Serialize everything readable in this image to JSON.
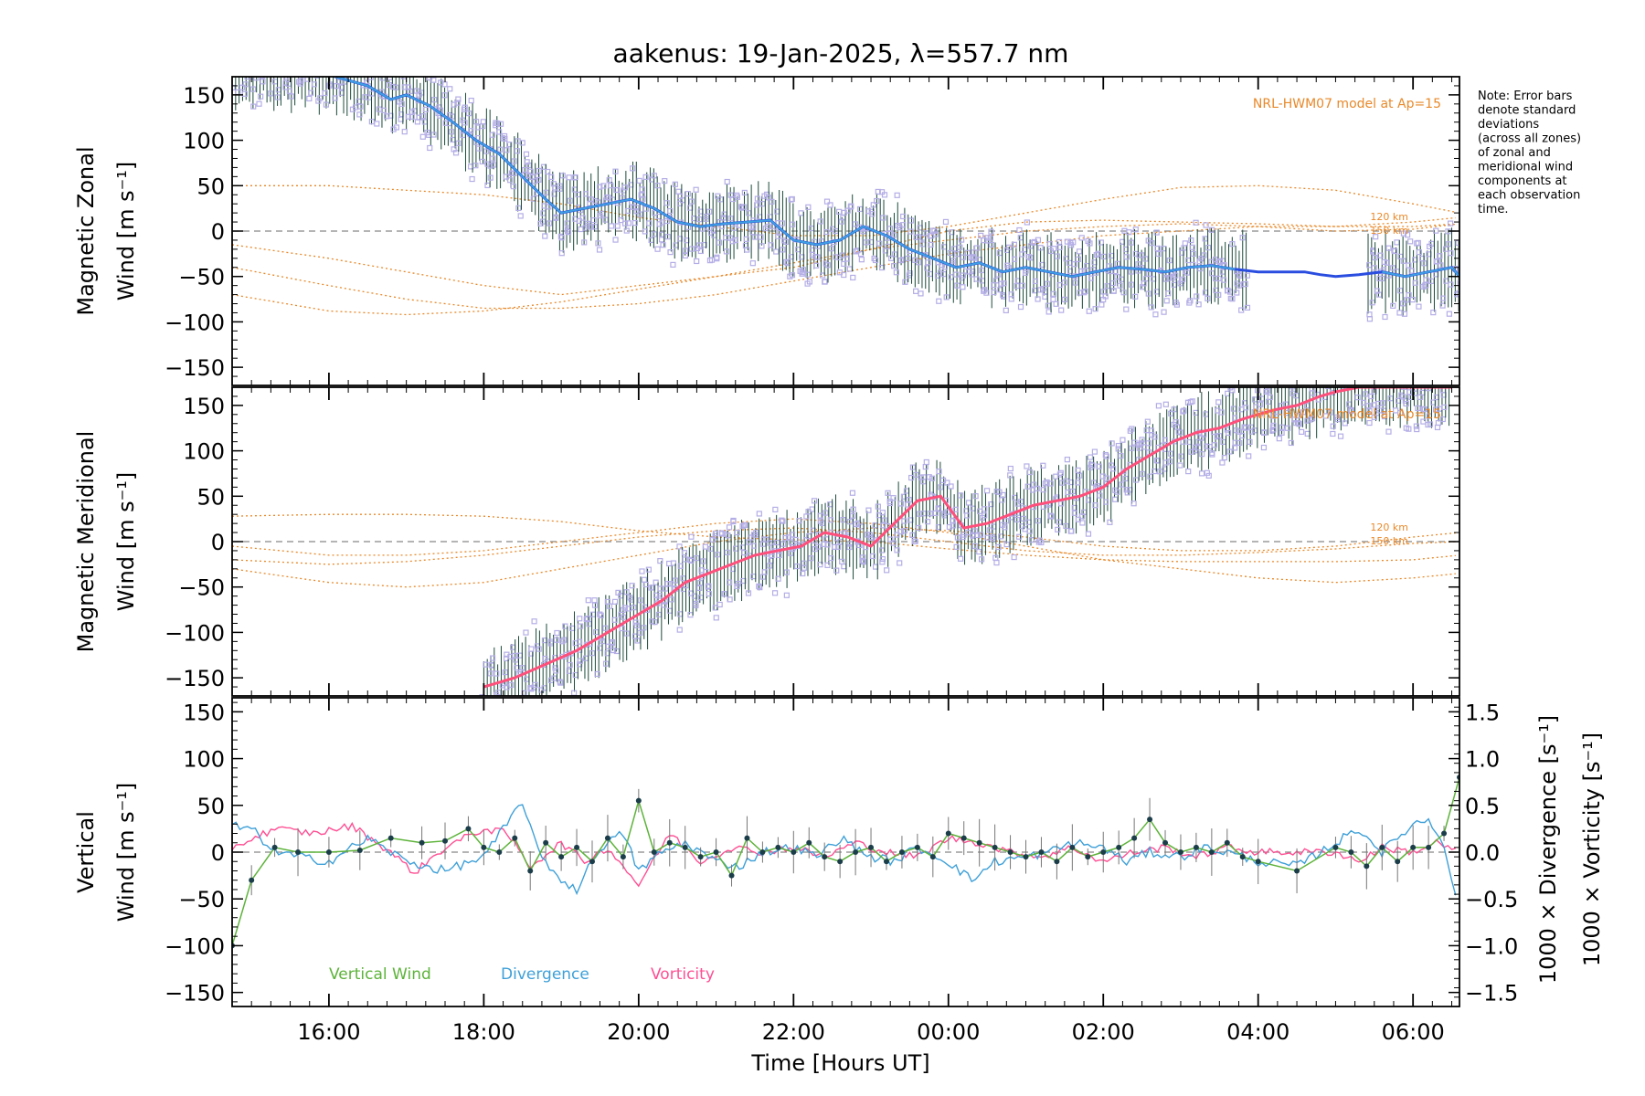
{
  "title": "aakenus: 19-Jan-2025, λ=557.7 nm",
  "xaxis": {
    "label": "Time [Hours UT]",
    "range": [
      14.75,
      30.6
    ],
    "ticks": [
      16,
      18,
      20,
      22,
      24,
      26,
      28,
      30
    ],
    "tick_labels": [
      "16:00",
      "18:00",
      "20:00",
      "22:00",
      "00:00",
      "02:00",
      "04:00",
      "06:00"
    ]
  },
  "note": [
    "Note: Error bars",
    "denote standard",
    "deviations",
    "(across all zones)",
    "of zonal and",
    "meridional wind",
    "components at",
    "each observation",
    "time."
  ],
  "colors": {
    "zonal": "#2a4de0",
    "zonal_light": "#3fa0e0",
    "meridional": "#ff4f7b",
    "model": "#e8892a",
    "scatter": "#b4aee6",
    "vertical": "#5db33a",
    "divergence": "#3ea0d8",
    "vorticity": "#ff4f93"
  },
  "chart_data": [
    {
      "type": "line",
      "panel": "zonal",
      "ylabel_line1": "Magnetic Zonal",
      "ylabel_line2": "Wind [m s⁻¹]",
      "ylim": [
        -170,
        170
      ],
      "yticks": [
        -150,
        -100,
        -50,
        0,
        50,
        100,
        150
      ],
      "ytick_labels": [
        "−150",
        "−100",
        "−50",
        "0",
        "50",
        "100",
        "150"
      ],
      "model_label": "NRL-HWM07 model at Ap=15",
      "km_labels": [
        "120 km",
        "150 km"
      ],
      "series": [
        {
          "name": "zonal wind",
          "x": [
            14.75,
            15.5,
            16.0,
            16.5,
            16.8,
            17.0,
            17.3,
            17.6,
            17.9,
            18.2,
            18.5,
            18.8,
            19.0,
            19.3,
            19.6,
            19.9,
            20.2,
            20.5,
            20.8,
            21.1,
            21.4,
            21.7,
            22.0,
            22.3,
            22.6,
            22.9,
            23.2,
            23.5,
            23.8,
            24.1,
            24.4,
            24.7,
            25.0,
            25.3,
            25.6,
            25.9,
            26.2,
            26.5,
            26.8,
            27.1,
            27.4,
            27.7,
            28.0,
            28.3,
            28.6,
            28.8,
            29.0,
            29.3,
            29.6,
            29.9,
            30.2,
            30.5,
            30.6
          ],
          "y": [
            175,
            175,
            172,
            160,
            145,
            150,
            138,
            120,
            100,
            85,
            60,
            35,
            20,
            25,
            30,
            35,
            25,
            10,
            5,
            8,
            10,
            12,
            -10,
            -15,
            -10,
            5,
            -5,
            -20,
            -30,
            -40,
            -35,
            -45,
            -40,
            -45,
            -50,
            -45,
            -40,
            -42,
            -45,
            -40,
            -38,
            -42,
            -45,
            -45,
            -45,
            -48,
            -50,
            -48,
            -45,
            -50,
            -45,
            -40,
            -50
          ]
        },
        {
          "name": "HWM07 model 1",
          "x": [
            14.75,
            16,
            17,
            18,
            19,
            20,
            21,
            22,
            23,
            24,
            25,
            26,
            27,
            28,
            29,
            30,
            30.6
          ],
          "y": [
            -15,
            -30,
            -45,
            -60,
            -70,
            -60,
            -50,
            -40,
            -20,
            0,
            10,
            12,
            10,
            8,
            5,
            10,
            15
          ]
        },
        {
          "name": "HWM07 model 2",
          "x": [
            14.75,
            16,
            17,
            18,
            19,
            20,
            21,
            22,
            23,
            24,
            25,
            26,
            27,
            28,
            29,
            30,
            30.6
          ],
          "y": [
            -70,
            -88,
            -92,
            -88,
            -78,
            -64,
            -50,
            -35,
            -20,
            -10,
            0,
            5,
            8,
            5,
            0,
            2,
            8
          ]
        },
        {
          "name": "HWM07 model 3",
          "x": [
            14.75,
            16,
            17,
            18,
            19,
            20,
            21,
            22,
            23,
            24,
            25,
            26,
            27,
            28,
            29,
            30,
            30.6
          ],
          "y": [
            50,
            50,
            45,
            40,
            30,
            15,
            5,
            -5,
            -5,
            5,
            20,
            35,
            48,
            50,
            45,
            30,
            20
          ]
        },
        {
          "name": "HWM07 model 4",
          "x": [
            14.75,
            16,
            17,
            18,
            19,
            20,
            21,
            22,
            23,
            24,
            25,
            26,
            27,
            28,
            29,
            30,
            30.6
          ],
          "y": [
            -40,
            -60,
            -75,
            -85,
            -85,
            -80,
            -70,
            -55,
            -40,
            -25,
            -15,
            -5,
            0,
            5,
            5,
            5,
            8
          ]
        }
      ]
    },
    {
      "type": "line",
      "panel": "meridional",
      "ylabel_line1": "Magnetic Meridional",
      "ylabel_line2": "Wind [m s⁻¹]",
      "ylim": [
        -170,
        170
      ],
      "yticks": [
        -150,
        -100,
        -50,
        0,
        50,
        100,
        150
      ],
      "ytick_labels": [
        "−150",
        "−100",
        "−50",
        "0",
        "50",
        "100",
        "150"
      ],
      "model_label": "NRL-HWM07 model at Ap=15",
      "km_labels": [
        "120 km",
        "150 km"
      ],
      "series": [
        {
          "name": "meridional wind",
          "x": [
            18.0,
            18.4,
            18.8,
            19.2,
            19.6,
            20.0,
            20.3,
            20.6,
            20.9,
            21.2,
            21.5,
            21.8,
            22.1,
            22.4,
            22.7,
            23.0,
            23.3,
            23.6,
            23.9,
            24.2,
            24.5,
            24.8,
            25.1,
            25.4,
            25.7,
            26.0,
            26.3,
            26.6,
            26.9,
            27.2,
            27.5,
            27.8,
            28.0,
            28.2,
            28.5,
            28.8,
            29.0,
            29.3,
            29.6,
            29.9,
            30.2,
            30.5
          ],
          "y": [
            -160,
            -150,
            -135,
            -120,
            -100,
            -80,
            -65,
            -45,
            -35,
            -25,
            -15,
            -10,
            -5,
            10,
            5,
            -5,
            20,
            45,
            50,
            15,
            20,
            30,
            40,
            45,
            50,
            60,
            80,
            95,
            110,
            120,
            125,
            135,
            140,
            145,
            150,
            160,
            165,
            170,
            170,
            170,
            170,
            170
          ]
        },
        {
          "name": "HWM07 model 1",
          "x": [
            14.75,
            16,
            17,
            18,
            19,
            20,
            21,
            22,
            23,
            24,
            25,
            26,
            27,
            28,
            29,
            30,
            30.6
          ],
          "y": [
            -30,
            -45,
            -50,
            -45,
            -30,
            -15,
            0,
            10,
            15,
            12,
            5,
            -5,
            -10,
            -10,
            -5,
            5,
            10
          ]
        },
        {
          "name": "HWM07 model 2",
          "x": [
            14.75,
            16,
            17,
            18,
            19,
            20,
            21,
            22,
            23,
            24,
            25,
            26,
            27,
            28,
            29,
            30,
            30.6
          ],
          "y": [
            28,
            30,
            30,
            28,
            22,
            12,
            5,
            2,
            0,
            -8,
            -15,
            -20,
            -22,
            -22,
            -22,
            -20,
            -15
          ]
        },
        {
          "name": "HWM07 model 3",
          "x": [
            14.75,
            16,
            17,
            18,
            19,
            20,
            21,
            22,
            23,
            24,
            25,
            26,
            27,
            28,
            29,
            30,
            30.6
          ],
          "y": [
            -5,
            -15,
            -15,
            -10,
            0,
            10,
            20,
            25,
            20,
            10,
            -5,
            -20,
            -30,
            -40,
            -45,
            -40,
            -35
          ]
        },
        {
          "name": "HWM07 model 4",
          "x": [
            14.75,
            16,
            17,
            18,
            19,
            20,
            21,
            22,
            23,
            24,
            25,
            26,
            27,
            28,
            29,
            30,
            30.6
          ],
          "y": [
            -20,
            -25,
            -22,
            -15,
            -5,
            5,
            12,
            15,
            10,
            0,
            -10,
            -15,
            -15,
            -12,
            -8,
            -2,
            0
          ]
        }
      ]
    },
    {
      "type": "line",
      "panel": "vertical",
      "ylabel_line1": "Vertical",
      "ylabel_line2": "Wind [m s⁻¹]",
      "ylim": [
        -165,
        165
      ],
      "yticks": [
        -150,
        -100,
        -50,
        0,
        50,
        100,
        150
      ],
      "ytick_labels": [
        "−150",
        "−100",
        "−50",
        "0",
        "50",
        "100",
        "150"
      ],
      "y2lim": [
        -1.65,
        1.65
      ],
      "y2ticks": [
        -1.5,
        -1.0,
        -0.5,
        0.0,
        0.5,
        1.0,
        1.5
      ],
      "y2tick_labels": [
        "−1.5",
        "−1.0",
        "−0.5",
        "0.0",
        "0.5",
        "1.0",
        "1.5"
      ],
      "y2label_divergence": "1000 × Divergence [s⁻¹]",
      "y2label_vorticity": "1000 × Vorticity [s⁻¹]",
      "legend": [
        "Vertical Wind",
        "Divergence",
        "Vorticity"
      ],
      "series": [
        {
          "name": "Vertical Wind",
          "x": [
            14.75,
            15.0,
            15.3,
            15.6,
            16.0,
            16.4,
            16.8,
            17.2,
            17.5,
            17.8,
            18.0,
            18.2,
            18.4,
            18.6,
            18.8,
            19.0,
            19.2,
            19.4,
            19.6,
            19.8,
            20.0,
            20.2,
            20.4,
            20.6,
            20.8,
            21.0,
            21.2,
            21.4,
            21.6,
            21.8,
            22.0,
            22.2,
            22.4,
            22.6,
            22.8,
            23.0,
            23.2,
            23.4,
            23.6,
            23.8,
            24.0,
            24.2,
            24.4,
            24.6,
            24.8,
            25.0,
            25.2,
            25.4,
            25.6,
            25.8,
            26.0,
            26.2,
            26.4,
            26.6,
            26.8,
            27.0,
            27.2,
            27.4,
            27.6,
            27.8,
            28.0,
            28.5,
            29.0,
            29.2,
            29.4,
            29.6,
            29.8,
            30.0,
            30.2,
            30.4,
            30.6
          ],
          "y": [
            -100,
            -30,
            5,
            0,
            0,
            2,
            15,
            10,
            12,
            25,
            5,
            0,
            15,
            -20,
            10,
            -5,
            5,
            -10,
            15,
            -5,
            55,
            0,
            10,
            5,
            -5,
            0,
            -25,
            15,
            0,
            5,
            0,
            10,
            -5,
            -10,
            0,
            5,
            -10,
            0,
            5,
            -5,
            20,
            15,
            10,
            5,
            0,
            -5,
            0,
            -10,
            5,
            -5,
            0,
            5,
            15,
            35,
            10,
            0,
            5,
            0,
            10,
            -5,
            -10,
            -20,
            5,
            0,
            -15,
            5,
            -10,
            5,
            5,
            20,
            80
          ]
        },
        {
          "name": "Divergence",
          "x": [
            14.75,
            15.0,
            15.3,
            15.6,
            16.0,
            16.5,
            17.0,
            17.5,
            18.0,
            18.3,
            18.5,
            18.7,
            19.0,
            19.2,
            19.5,
            19.8,
            20.0,
            20.3,
            20.6,
            21.0,
            21.3,
            21.6,
            22.0,
            22.3,
            22.6,
            23.0,
            23.3,
            23.6,
            24.0,
            24.3,
            24.6,
            25.0,
            25.3,
            25.6,
            26.0,
            26.3,
            26.6,
            27.0,
            27.3,
            27.6,
            28.0,
            28.5,
            29.0,
            29.3,
            29.6,
            30.0,
            30.2,
            30.4,
            30.6
          ],
          "y": [
            0.28,
            0.25,
            0.0,
            -0.05,
            -0.1,
            0.15,
            -0.1,
            -0.2,
            -0.05,
            0.3,
            0.55,
            0.0,
            -0.3,
            -0.4,
            0.05,
            0.2,
            -0.2,
            0.0,
            0.1,
            -0.1,
            -0.15,
            0.0,
            0.05,
            -0.05,
            0.15,
            -0.05,
            -0.1,
            0.05,
            -0.1,
            -0.3,
            -0.1,
            -0.05,
            0.0,
            0.1,
            0.05,
            -0.1,
            0.0,
            -0.05,
            0.05,
            0.0,
            -0.1,
            -0.15,
            0.1,
            0.25,
            0.0,
            0.3,
            0.35,
            0.1,
            -0.7
          ]
        },
        {
          "name": "Vorticity",
          "x": [
            14.75,
            15.3,
            15.8,
            16.3,
            16.8,
            17.1,
            17.5,
            18.0,
            18.3,
            18.6,
            19.0,
            19.3,
            19.6,
            20.0,
            20.4,
            20.8,
            21.2,
            21.6,
            22.0,
            22.4,
            22.8,
            23.2,
            23.6,
            24.0,
            24.4,
            24.8,
            25.2,
            25.6,
            26.0,
            26.4,
            26.8,
            27.2,
            27.6,
            28.0,
            28.5,
            29.0,
            29.3,
            29.6,
            30.0,
            30.3,
            30.6
          ],
          "y": [
            0.05,
            0.25,
            0.2,
            0.28,
            0.0,
            -0.22,
            0.05,
            0.25,
            0.2,
            -0.15,
            0.1,
            -0.1,
            0.05,
            -0.35,
            0.2,
            -0.1,
            0.05,
            0.0,
            0.05,
            -0.05,
            0.1,
            0.0,
            -0.05,
            0.15,
            0.1,
            0.0,
            -0.05,
            0.05,
            -0.1,
            0.0,
            0.05,
            -0.05,
            0.05,
            0.0,
            0.0,
            0.0,
            -0.1,
            0.05,
            0.0,
            0.1,
            0.0
          ]
        }
      ]
    }
  ]
}
